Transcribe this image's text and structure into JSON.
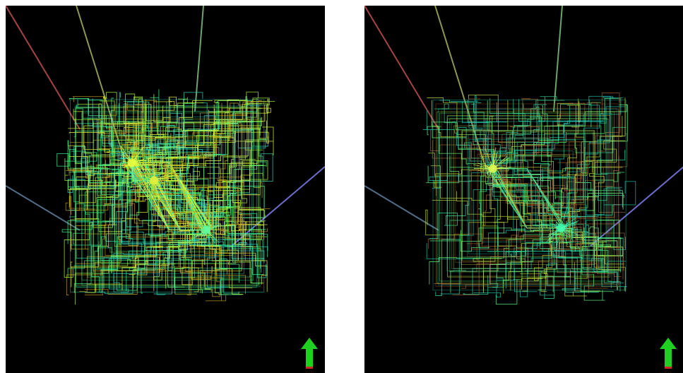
{
  "panels": [
    {
      "id": "left",
      "hotspots": [
        {
          "u": 0.32,
          "v": 0.33,
          "weight": 1.0,
          "color": "#e8ff40"
        },
        {
          "u": 0.43,
          "v": 0.42,
          "weight": 1.0,
          "color": "#e0f040"
        },
        {
          "u": 0.69,
          "v": 0.67,
          "weight": 1.2,
          "color": "#60ffa0"
        }
      ],
      "bundle_count": 220,
      "dominant_colors": [
        "#f0ff3a",
        "#b0ff40",
        "#40ff90",
        "#30e0c0",
        "#c8a020"
      ],
      "guide_lines": [
        "#c05050",
        "#a8b060",
        "#80c080",
        "#6080a0",
        "#8080f0"
      ]
    },
    {
      "id": "right",
      "hotspots": [
        {
          "u": 0.33,
          "v": 0.36,
          "weight": 0.9,
          "color": "#e0ff50"
        },
        {
          "u": 0.67,
          "v": 0.66,
          "weight": 1.0,
          "color": "#40ffb0"
        }
      ],
      "bundle_count": 140,
      "dominant_colors": [
        "#30e0a0",
        "#20c8b0",
        "#c0e040",
        "#60ff80",
        "#a06030"
      ],
      "guide_lines": [
        "#c05050",
        "#a8b060",
        "#80c080",
        "#6080a0",
        "#8080f0"
      ]
    }
  ],
  "orientation_arrow": {
    "icon": "up-arrow-icon",
    "color": "#20d020",
    "base_color": "#d02020"
  }
}
